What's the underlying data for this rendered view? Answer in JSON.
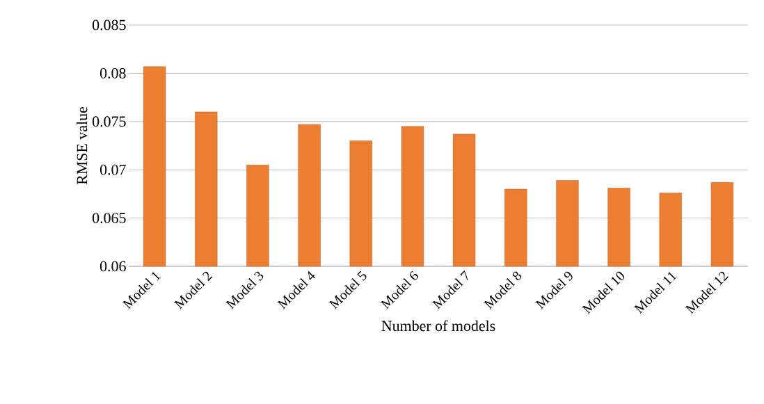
{
  "chart_data": {
    "type": "bar",
    "xlabel": "Number of models",
    "ylabel": "RMSE value",
    "categories": [
      "Model 1",
      "Model 2",
      "Model 3",
      "Model 4",
      "Model 5",
      "Model 6",
      "Model 7",
      "Model 8",
      "Model 9",
      "Model 10",
      "Model 11",
      "Model 12"
    ],
    "values": [
      0.0807,
      0.076,
      0.0705,
      0.0747,
      0.073,
      0.0745,
      0.0737,
      0.068,
      0.0689,
      0.0681,
      0.0676,
      0.0687
    ],
    "color": "#ed7d31",
    "ylim": [
      0.06,
      0.085
    ],
    "yticks": [
      0.06,
      0.065,
      0.07,
      0.075,
      0.08,
      0.085
    ],
    "grid": "y"
  }
}
